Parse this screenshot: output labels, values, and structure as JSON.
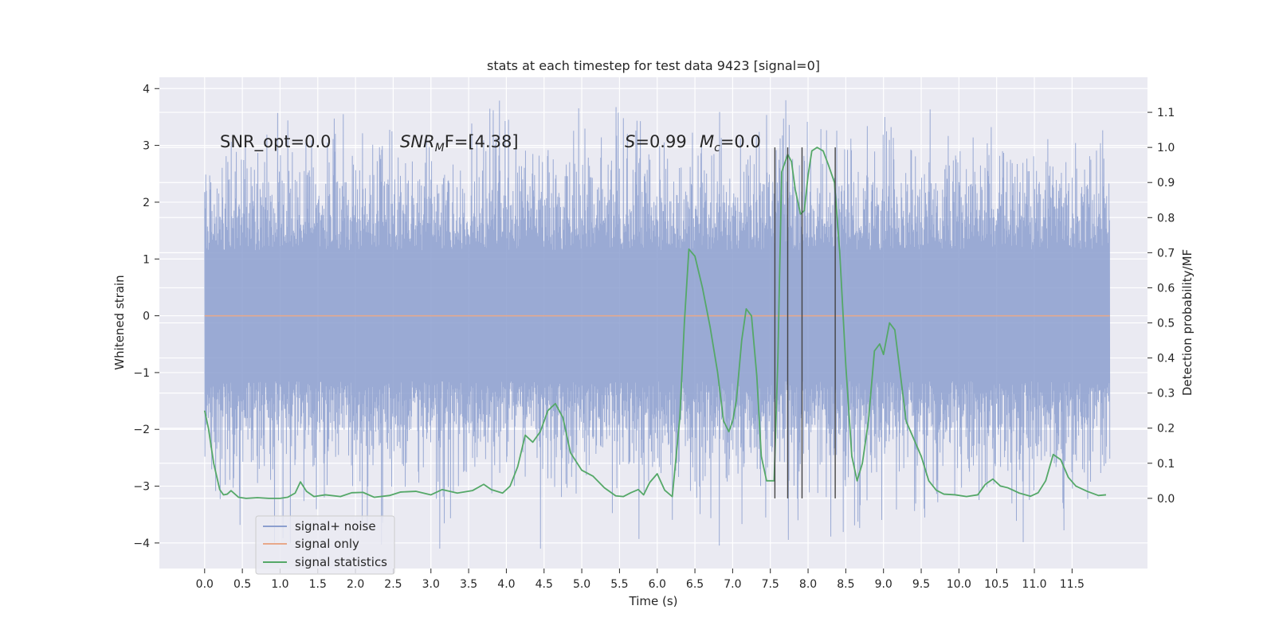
{
  "chart_data": {
    "type": "line",
    "title": "stats at each timestep for test data 9423 [signal=0]",
    "xlabel": "Time (s)",
    "ylabel": "Whitened strain",
    "ylabel_right": "Detection probability/MF",
    "xlim": [
      -0.6,
      12.5
    ],
    "ylim": [
      -4.45,
      4.2
    ],
    "ylim_right": [
      -0.2,
      1.2
    ],
    "x_ticks": [
      0.0,
      0.5,
      1.0,
      1.5,
      2.0,
      2.5,
      3.0,
      3.5,
      4.0,
      4.5,
      5.0,
      5.5,
      6.0,
      6.5,
      7.0,
      7.5,
      8.0,
      8.5,
      9.0,
      9.5,
      10.0,
      10.5,
      11.0,
      11.5
    ],
    "x_tick_labels": [
      "0.0",
      "0.5",
      "1.0",
      "1.5",
      "2.0",
      "2.5",
      "3.0",
      "3.5",
      "4.0",
      "4.5",
      "5.0",
      "5.5",
      "6.0",
      "6.5",
      "7.0",
      "7.5",
      "8.0",
      "8.5",
      "9.0",
      "9.5",
      "10.0",
      "10.5",
      "11.0",
      "11.5"
    ],
    "y_ticks": [
      4,
      3,
      2,
      1,
      0,
      -1,
      -2,
      -3,
      -4
    ],
    "y_tick_labels": [
      "4",
      "3",
      "2",
      "1",
      "0",
      "−1",
      "−2",
      "−3",
      "−4"
    ],
    "y_right_ticks": [
      0.0,
      0.1,
      0.2,
      0.3,
      0.4,
      0.5,
      0.6,
      0.7,
      0.8,
      0.9,
      1.0,
      1.1
    ],
    "y_right_tick_labels": [
      "0.0",
      "0.1",
      "0.2",
      "0.3",
      "0.4",
      "0.5",
      "0.6",
      "0.7",
      "0.8",
      "0.9",
      "1.0",
      "1.1"
    ],
    "grid": true,
    "legend_placement": "lower-left",
    "annotations": {
      "snr_opt": "SNR_opt=0.0",
      "snr_mf_base": "SNR",
      "snr_mf_sub": "M",
      "snr_mf_rest": "F=[4.38]",
      "s_label": "S",
      "s_value": "=0.99",
      "mc_label": "M",
      "mc_sub": "c",
      "mc_value": "=0.0"
    },
    "noise": {
      "t_start": 0.0,
      "t_end": 12.0,
      "typical_range": [
        -2.1,
        2.1
      ],
      "extreme_range": [
        -4.1,
        3.8
      ]
    },
    "series": [
      {
        "name": "signal+ noise",
        "axis": "left",
        "color": "#8c9fcf"
      },
      {
        "name": "signal only",
        "axis": "left",
        "color": "#e8a88a",
        "x": [
          0.0,
          12.0
        ],
        "y": [
          0.0,
          0.0
        ]
      },
      {
        "name": "signal statistics",
        "axis": "right",
        "color": "#55a868",
        "x": [
          0.0,
          0.05,
          0.12,
          0.2,
          0.25,
          0.3,
          0.35,
          0.45,
          0.55,
          0.7,
          0.85,
          1.0,
          1.1,
          1.2,
          1.27,
          1.35,
          1.45,
          1.6,
          1.8,
          1.95,
          2.1,
          2.25,
          2.45,
          2.6,
          2.8,
          3.0,
          3.15,
          3.35,
          3.55,
          3.7,
          3.8,
          3.95,
          4.05,
          4.15,
          4.25,
          4.35,
          4.45,
          4.55,
          4.65,
          4.75,
          4.85,
          5.0,
          5.15,
          5.3,
          5.45,
          5.55,
          5.65,
          5.75,
          5.82,
          5.9,
          6.0,
          6.1,
          6.2,
          6.3,
          6.36,
          6.42,
          6.5,
          6.6,
          6.7,
          6.8,
          6.88,
          6.95,
          7.0,
          7.05,
          7.12,
          7.18,
          7.25,
          7.32,
          7.38,
          7.45,
          7.55,
          7.6,
          7.65,
          7.73,
          7.78,
          7.83,
          7.9,
          7.95,
          8.0,
          8.05,
          8.12,
          8.2,
          8.27,
          8.35,
          8.42,
          8.5,
          8.58,
          8.65,
          8.72,
          8.8,
          8.88,
          8.95,
          9.0,
          9.08,
          9.15,
          9.22,
          9.3,
          9.38,
          9.5,
          9.6,
          9.7,
          9.8,
          9.95,
          10.1,
          10.25,
          10.35,
          10.45,
          10.55,
          10.65,
          10.8,
          10.95,
          11.05,
          11.15,
          11.25,
          11.35,
          11.45,
          11.55,
          11.7,
          11.85,
          11.95
        ],
        "y": [
          0.25,
          0.2,
          0.1,
          0.025,
          0.01,
          0.012,
          0.022,
          0.003,
          0.0,
          0.002,
          0.0,
          0.0,
          0.003,
          0.015,
          0.047,
          0.02,
          0.005,
          0.01,
          0.005,
          0.016,
          0.017,
          0.003,
          0.008,
          0.018,
          0.02,
          0.01,
          0.025,
          0.015,
          0.022,
          0.04,
          0.025,
          0.015,
          0.035,
          0.09,
          0.18,
          0.16,
          0.19,
          0.25,
          0.27,
          0.23,
          0.13,
          0.08,
          0.063,
          0.03,
          0.007,
          0.005,
          0.016,
          0.025,
          0.01,
          0.045,
          0.07,
          0.023,
          0.005,
          0.23,
          0.5,
          0.71,
          0.69,
          0.6,
          0.49,
          0.36,
          0.22,
          0.19,
          0.22,
          0.28,
          0.45,
          0.54,
          0.52,
          0.35,
          0.12,
          0.05,
          0.05,
          0.4,
          0.93,
          0.98,
          0.96,
          0.88,
          0.81,
          0.82,
          0.92,
          0.99,
          1.0,
          0.99,
          0.95,
          0.9,
          0.7,
          0.38,
          0.12,
          0.05,
          0.1,
          0.22,
          0.42,
          0.44,
          0.41,
          0.5,
          0.48,
          0.36,
          0.22,
          0.18,
          0.12,
          0.05,
          0.023,
          0.012,
          0.01,
          0.005,
          0.01,
          0.04,
          0.055,
          0.035,
          0.03,
          0.015,
          0.006,
          0.016,
          0.05,
          0.125,
          0.11,
          0.06,
          0.035,
          0.02,
          0.008,
          0.01
        ]
      }
    ],
    "vertical_markers_x": [
      7.56,
      7.73,
      7.92,
      8.36
    ],
    "vertical_markers_right_range": [
      0.0,
      1.0
    ]
  }
}
